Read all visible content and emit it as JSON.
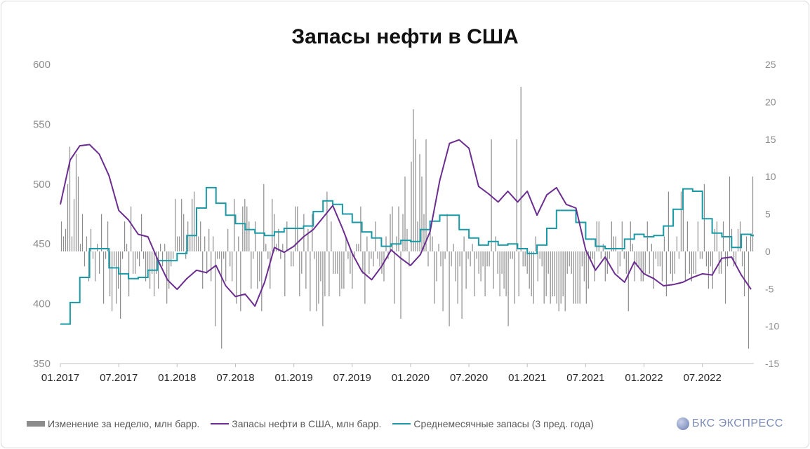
{
  "chart_data": {
    "type": "bar+line",
    "title": "Запасы нефти в США",
    "y_left": {
      "ylim": [
        350,
        600
      ],
      "ticks": [
        "600",
        "550",
        "500",
        "450",
        "400",
        "350"
      ]
    },
    "y_right": {
      "ylim": [
        -15,
        25
      ],
      "ticks": [
        "25",
        "20",
        "15",
        "10",
        "5",
        "0",
        "-5",
        "-10",
        "-15"
      ]
    },
    "x_ticks": [
      "01.2017",
      "07.2017",
      "01.2018",
      "07.2018",
      "01.2019",
      "07.2019",
      "01.2020",
      "07.2020",
      "01.2021",
      "07.2021",
      "01.2022",
      "07.2022"
    ],
    "series": [
      {
        "name": "Изменение за неделю, млн барр.",
        "type": "bar",
        "axis": "right",
        "color": "#8c8c8c",
        "values": [
          4,
          2,
          3,
          9,
          14,
          2,
          7,
          13,
          10,
          1,
          5,
          -2,
          2,
          -4,
          3,
          -1,
          -4,
          1,
          -3,
          5,
          -7,
          -1,
          4,
          -6,
          -8,
          -2,
          -7,
          -5,
          -9,
          -1,
          4,
          1,
          -6,
          6,
          -3,
          -3,
          -1,
          -2,
          5,
          -1,
          -4,
          -3,
          -5,
          -3,
          -6,
          -3,
          -5,
          1,
          -2,
          1,
          -7,
          -5,
          -2,
          -1,
          7,
          2,
          2,
          7,
          5,
          -1,
          4,
          2,
          7,
          8,
          4,
          2,
          4,
          -5,
          2,
          -3,
          3,
          -4,
          2,
          -10,
          -1,
          -1,
          -13,
          -1,
          -4,
          3,
          -2,
          -4,
          7,
          -7,
          2,
          -8,
          6,
          7,
          6,
          4,
          -5,
          -1,
          4,
          -5,
          -4,
          -8,
          9,
          1,
          -1,
          -5,
          7,
          5,
          1,
          3,
          -1,
          1,
          -6,
          4,
          0,
          -2,
          -2,
          6,
          6,
          -6,
          -3,
          5,
          -5,
          3,
          -8,
          5,
          -1,
          -8,
          -7,
          -4,
          -10,
          -6,
          8,
          -6,
          4,
          -3,
          -3,
          -3,
          -6,
          -5,
          -5,
          2,
          -1,
          -3,
          -5,
          -1,
          1,
          1,
          6,
          -3,
          -7,
          2,
          -3,
          -1,
          -2,
          4,
          -1,
          -2,
          -3,
          -4,
          2,
          -1,
          5,
          6,
          -7,
          2,
          6,
          -9,
          5,
          10,
          3,
          -2,
          12,
          19,
          15,
          4,
          13,
          10,
          5,
          15,
          -2,
          4,
          2,
          -7,
          -4,
          1,
          -2,
          -8,
          -1,
          5,
          -10,
          -2,
          1,
          -4,
          -7,
          -2,
          -9,
          2,
          -5,
          -1,
          -2,
          1,
          -6,
          -1,
          -3,
          -4,
          -2,
          -6,
          -2,
          -2,
          15,
          -5,
          2,
          -3,
          -6,
          -3,
          -5,
          -6,
          -10,
          -1,
          -1,
          -7,
          15,
          -6,
          22,
          -2,
          -2,
          -3,
          -5,
          -6,
          -7,
          2,
          -4,
          -1,
          -2,
          -7,
          -6,
          -3,
          -7,
          -6,
          -6,
          -7,
          -8,
          -7,
          -6,
          -8,
          -3,
          -2,
          -3,
          -7,
          -7,
          -7,
          -7,
          -2,
          -4,
          -7,
          -5,
          -1,
          -1,
          -4,
          4,
          4,
          -1,
          1,
          -4,
          -3,
          -1,
          4,
          2,
          2,
          -3,
          -2,
          4,
          -1,
          -3,
          -8,
          4,
          1,
          -4,
          -2,
          -2,
          -4,
          -4,
          -3,
          4,
          -3,
          1,
          -5,
          -1,
          -2,
          -2,
          -4,
          2,
          -6,
          8,
          -3,
          -4,
          -3,
          2,
          -1,
          8,
          6,
          -4,
          4,
          -3,
          -4,
          -3,
          -3,
          4,
          -1,
          -1,
          9,
          -2,
          -5,
          -2,
          -5,
          3,
          4,
          -3,
          -3,
          4,
          -7,
          -2,
          10,
          3,
          -2,
          -2,
          3,
          4,
          -2,
          -6,
          2,
          -13,
          2,
          10
        ],
        "approx_week_spacing": "weekly, 01.2017 – 12.2022"
      },
      {
        "name": "Запасы нефти в США, млн барр.",
        "type": "line",
        "axis": "left",
        "color": "#6b2d8f",
        "x": [
          "01.2017",
          "02.2017",
          "03.2017",
          "04.2017",
          "05.2017",
          "06.2017",
          "07.2017",
          "08.2017",
          "09.2017",
          "10.2017",
          "11.2017",
          "12.2017",
          "01.2018",
          "02.2018",
          "03.2018",
          "04.2018",
          "05.2018",
          "06.2018",
          "07.2018",
          "08.2018",
          "09.2018",
          "10.2018",
          "11.2018",
          "12.2018",
          "01.2019",
          "02.2019",
          "03.2019",
          "04.2019",
          "05.2019",
          "06.2019",
          "07.2019",
          "08.2019",
          "09.2019",
          "10.2019",
          "11.2019",
          "12.2019",
          "01.2020",
          "02.2020",
          "03.2020",
          "04.2020",
          "05.2020",
          "06.2020",
          "07.2020",
          "08.2020",
          "09.2020",
          "10.2020",
          "11.2020",
          "12.2020",
          "01.2021",
          "02.2021",
          "03.2021",
          "04.2021",
          "05.2021",
          "06.2021",
          "07.2021",
          "08.2021",
          "09.2021",
          "10.2021",
          "11.2021",
          "12.2021",
          "01.2022",
          "02.2022",
          "03.2022",
          "04.2022",
          "05.2022",
          "06.2022",
          "07.2022",
          "08.2022",
          "09.2022",
          "10.2022",
          "11.2022",
          "12.2022"
        ],
        "values": [
          483,
          520,
          532,
          533,
          525,
          507,
          478,
          470,
          458,
          456,
          437,
          420,
          412,
          421,
          428,
          426,
          432,
          415,
          406,
          408,
          398,
          418,
          447,
          443,
          448,
          456,
          462,
          472,
          482,
          463,
          442,
          427,
          420,
          431,
          445,
          438,
          432,
          441,
          460,
          503,
          534,
          537,
          530,
          498,
          492,
          485,
          494,
          485,
          494,
          474,
          491,
          497,
          483,
          480,
          445,
          428,
          439,
          425,
          418,
          435,
          425,
          421,
          415,
          416,
          418,
          422,
          425,
          424,
          438,
          439,
          424,
          412
        ]
      },
      {
        "name": "Среднемесячные запасы (3 пред. года)",
        "type": "line",
        "axis": "left",
        "color": "#1a9aa6",
        "x": [
          "01.2017",
          "02.2017",
          "03.2017",
          "04.2017",
          "05.2017",
          "06.2017",
          "07.2017",
          "08.2017",
          "09.2017",
          "10.2017",
          "11.2017",
          "12.2017",
          "01.2018",
          "02.2018",
          "03.2018",
          "04.2018",
          "05.2018",
          "06.2018",
          "07.2018",
          "08.2018",
          "09.2018",
          "10.2018",
          "11.2018",
          "12.2018",
          "01.2019",
          "02.2019",
          "03.2019",
          "04.2019",
          "05.2019",
          "06.2019",
          "07.2019",
          "08.2019",
          "09.2019",
          "10.2019",
          "11.2019",
          "12.2019",
          "01.2020",
          "02.2020",
          "03.2020",
          "04.2020",
          "05.2020",
          "06.2020",
          "07.2020",
          "08.2020",
          "09.2020",
          "10.2020",
          "11.2020",
          "12.2020",
          "01.2021",
          "02.2021",
          "03.2021",
          "04.2021",
          "05.2021",
          "06.2021",
          "07.2021",
          "08.2021",
          "09.2021",
          "10.2021",
          "11.2021",
          "12.2021",
          "01.2022",
          "02.2022",
          "03.2022",
          "04.2022",
          "05.2022",
          "06.2022",
          "07.2022",
          "08.2022",
          "09.2022",
          "10.2022",
          "11.2022",
          "12.2022"
        ],
        "values": [
          383,
          401,
          422,
          446,
          446,
          430,
          425,
          421,
          422,
          428,
          436,
          436,
          442,
          457,
          480,
          497,
          484,
          474,
          467,
          462,
          459,
          457,
          460,
          463,
          463,
          465,
          477,
          486,
          483,
          475,
          468,
          460,
          455,
          448,
          450,
          453,
          452,
          462,
          469,
          474,
          474,
          462,
          455,
          449,
          452,
          449,
          450,
          446,
          442,
          449,
          463,
          478,
          478,
          468,
          454,
          448,
          446,
          446,
          454,
          458,
          456,
          457,
          465,
          479,
          496,
          494,
          471,
          459,
          456,
          447,
          458,
          457
        ],
        "shape": "step"
      }
    ],
    "legend_position": "bottom"
  },
  "legend": {
    "bar_label": "Изменение за неделю, млн барр.",
    "line1_label": "Запасы нефти в США, млн барр.",
    "line2_label": "Среднемесячные запасы (3 пред. года)"
  },
  "brand": {
    "text": "БКС ЭКСПРЕСС"
  },
  "colors": {
    "bar": "#8c8c8c",
    "stock": "#6b2d8f",
    "avg": "#1a9aa6",
    "axis_text": "#8c8c8c"
  }
}
